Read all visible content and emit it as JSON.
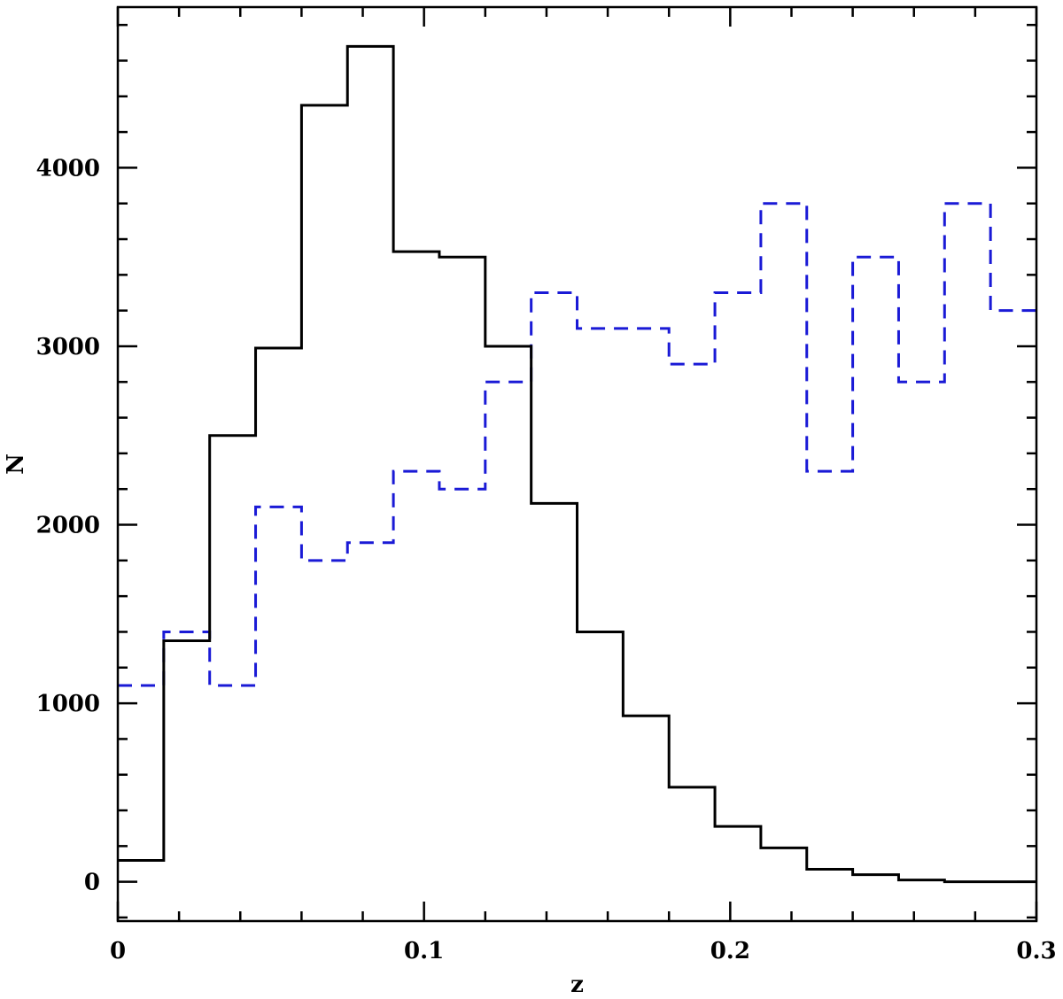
{
  "chart_data": {
    "type": "step-histogram",
    "xlabel": "z",
    "ylabel": "N",
    "xlim": [
      0,
      0.3
    ],
    "ylim": [
      -220,
      4900
    ],
    "x_ticks": [
      {
        "value": 0,
        "label": "0"
      },
      {
        "value": 0.1,
        "label": "0.1"
      },
      {
        "value": 0.2,
        "label": "0.2"
      },
      {
        "value": 0.3,
        "label": "0.3"
      }
    ],
    "y_ticks": [
      {
        "value": 0,
        "label": "0"
      },
      {
        "value": 1000,
        "label": "1000"
      },
      {
        "value": 2000,
        "label": "2000"
      },
      {
        "value": 3000,
        "label": "3000"
      },
      {
        "value": 4000,
        "label": "4000"
      }
    ],
    "x_minor_step": 0.02,
    "y_minor_step": 200,
    "bin_edges": [
      0,
      0.015,
      0.03,
      0.045,
      0.06,
      0.075,
      0.09,
      0.105,
      0.12,
      0.135,
      0.15,
      0.165,
      0.18,
      0.195,
      0.21,
      0.225,
      0.24,
      0.255,
      0.27,
      0.285,
      0.3
    ],
    "series": [
      {
        "style": "solid",
        "color": "#000000",
        "values": [
          120,
          1350,
          2500,
          2990,
          4350,
          4680,
          3530,
          3500,
          3000,
          2120,
          1400,
          930,
          530,
          310,
          190,
          70,
          40,
          10,
          0,
          0
        ]
      },
      {
        "style": "dashed",
        "color": "#1a1ad6",
        "values": [
          1100,
          1400,
          1100,
          2100,
          1800,
          1900,
          2300,
          2200,
          2800,
          3300,
          3100,
          3100,
          2900,
          3300,
          3800,
          2300,
          3500,
          2800,
          3800,
          3200
        ]
      }
    ]
  }
}
